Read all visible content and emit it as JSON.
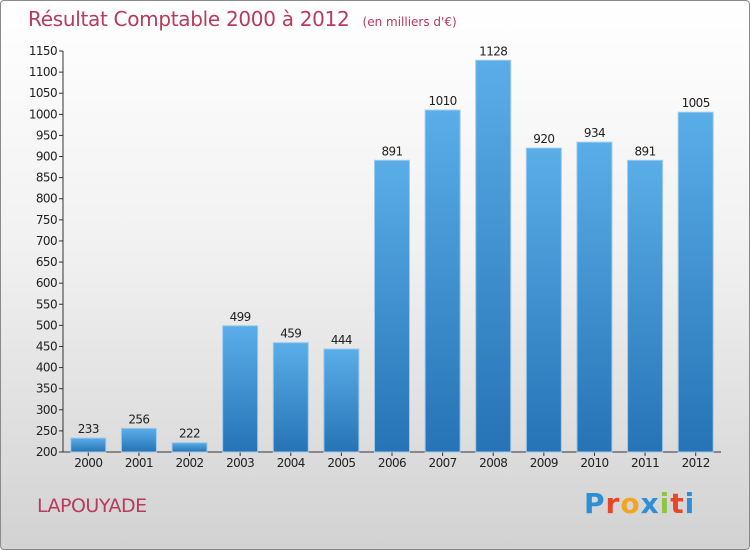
{
  "title": "Résultat Comptable 2000 à 2012",
  "unit_label": "(en milliers d'€)",
  "location": "LAPOUYADE",
  "brand": {
    "letters": [
      "P",
      "r",
      "o",
      "x",
      "i",
      "t",
      "i"
    ],
    "colors": [
      "#2f8fd6",
      "#e9452b",
      "#f2a521",
      "#2f8fd6",
      "#8dc63f",
      "#e9452b",
      "#2f8fd6"
    ]
  },
  "colors": {
    "accent": "#b83a5c",
    "bar": "#4f9fdc",
    "bar_dark": "#2673b5"
  },
  "chart_data": {
    "type": "bar",
    "categories": [
      "2000",
      "2001",
      "2002",
      "2003",
      "2004",
      "2005",
      "2006",
      "2007",
      "2008",
      "2009",
      "2010",
      "2011",
      "2012"
    ],
    "values": [
      233,
      256,
      222,
      499,
      459,
      444,
      891,
      1010,
      1128,
      920,
      934,
      891,
      1005
    ],
    "ylim": [
      200,
      1150
    ],
    "yticks": [
      200,
      250,
      300,
      350,
      400,
      450,
      500,
      550,
      600,
      650,
      700,
      750,
      800,
      850,
      900,
      950,
      1000,
      1050,
      1100,
      1150
    ],
    "grid": false,
    "xlabel": "",
    "ylabel": ""
  }
}
